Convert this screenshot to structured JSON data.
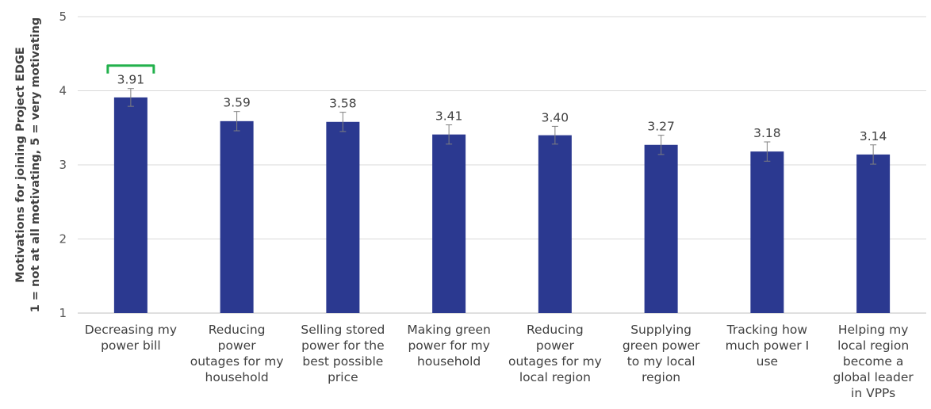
{
  "chart_data": {
    "type": "bar",
    "title": "",
    "ylabel_lines": [
      "Motivations for joining Project EDGE",
      "1 = not at all motivating, 5 = very motivating"
    ],
    "xlabel": "",
    "ylim": [
      1,
      5
    ],
    "yticks": [
      1,
      2,
      3,
      4,
      5
    ],
    "grid": true,
    "legend": "none",
    "bar_color": "#2b3990",
    "highlight_color": "#22b14c",
    "highlight_index": 0,
    "categories": [
      [
        "Decreasing my",
        "power bill"
      ],
      [
        "Reducing",
        "power",
        "outages for my",
        "household"
      ],
      [
        "Selling stored",
        "power for the",
        "best possible",
        "price"
      ],
      [
        "Making green",
        "power for my",
        "household"
      ],
      [
        "Reducing",
        "power",
        "outages for my",
        "local region"
      ],
      [
        "Supplying",
        "green power",
        "to my local",
        "region"
      ],
      [
        "Tracking how",
        "much power I",
        "use"
      ],
      [
        "Helping my",
        "local region",
        "become a",
        "global leader",
        "in VPPs"
      ]
    ],
    "values": [
      3.91,
      3.59,
      3.58,
      3.41,
      3.4,
      3.27,
      3.18,
      3.14
    ],
    "value_labels": [
      "3.91",
      "3.59",
      "3.58",
      "3.41",
      "3.40",
      "3.27",
      "3.18",
      "3.14"
    ],
    "error": [
      0.12,
      0.13,
      0.13,
      0.13,
      0.12,
      0.13,
      0.13,
      0.13
    ]
  }
}
